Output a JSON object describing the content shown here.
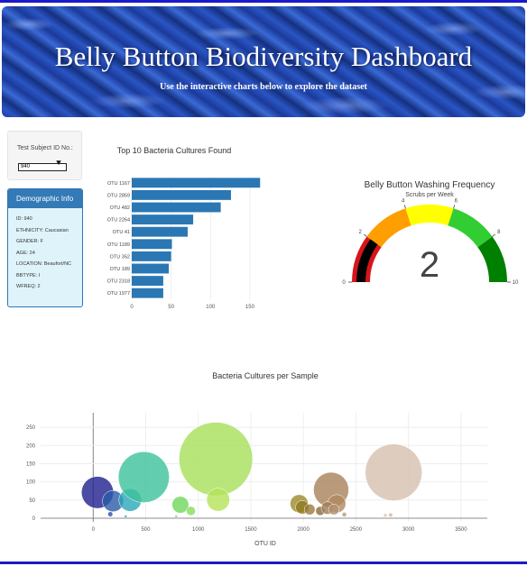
{
  "header": {
    "title": "Belly Button Biodiversity Dashboard",
    "subtitle": "Use the interactive charts below to explore the dataset"
  },
  "selector": {
    "label": "Test Subject ID No.:",
    "value": "940"
  },
  "demographics": {
    "title": "Demographic Info",
    "entries": [
      "ID: 940",
      "ETHNICITY: Caucasian",
      "GENDER: F",
      "AGE: 24",
      "LOCATION: Beaufort/NC",
      "BBTYPE: I",
      "WFREQ: 2"
    ]
  },
  "chart_data": [
    {
      "type": "bar",
      "orientation": "horizontal",
      "title": "Top 10 Bacteria Cultures Found",
      "categories": [
        "OTU 1167",
        "OTU 2859",
        "OTU 482",
        "OTU 2264",
        "OTU 41",
        "OTU 1189",
        "OTU 352",
        "OTU 189",
        "OTU 2318",
        "OTU 1977"
      ],
      "values": [
        163,
        126,
        113,
        78,
        71,
        51,
        50,
        47,
        40,
        40
      ],
      "xlim": [
        0,
        165
      ],
      "xticks": [
        0,
        50,
        100,
        150
      ],
      "color": "#2a77b4"
    },
    {
      "type": "gauge",
      "title": "Belly Button Washing Frequency",
      "subtitle": "Scrubs per Week",
      "value": 2,
      "range": [
        0,
        10
      ],
      "ticks": [
        0,
        2,
        4,
        6,
        8,
        10
      ],
      "bands": [
        {
          "from": 0,
          "to": 2,
          "color": "#d8141b"
        },
        {
          "from": 2,
          "to": 4,
          "color": "#ff9e00"
        },
        {
          "from": 4,
          "to": 6,
          "color": "#ffff00"
        },
        {
          "from": 6,
          "to": 8,
          "color": "#32cd32"
        },
        {
          "from": 8,
          "to": 10,
          "color": "#008000"
        }
      ],
      "bar_color": "#000000"
    },
    {
      "type": "scatter",
      "subtype": "bubble",
      "title": "Bacteria Cultures per Sample",
      "xlabel": "OTU ID",
      "ylabel": "",
      "xlim": [
        -500,
        3750
      ],
      "ylim": [
        -10,
        290
      ],
      "xticks": [
        0,
        500,
        1000,
        1500,
        2000,
        2500,
        3000,
        3500
      ],
      "yticks": [
        0,
        50,
        100,
        150,
        200,
        250
      ],
      "points": [
        {
          "x": 41,
          "y": 71,
          "color": "#1f1f8f"
        },
        {
          "x": 189,
          "y": 47,
          "color": "#2a5aa8"
        },
        {
          "x": 352,
          "y": 50,
          "color": "#2aa6b8"
        },
        {
          "x": 482,
          "y": 113,
          "color": "#3cc29b"
        },
        {
          "x": 163,
          "y": 11,
          "color": "#2b4fa5"
        },
        {
          "x": 310,
          "y": 5,
          "color": "#2ba0b5"
        },
        {
          "x": 830,
          "y": 37,
          "color": "#71d65c"
        },
        {
          "x": 930,
          "y": 20,
          "color": "#86dc5a"
        },
        {
          "x": 790,
          "y": 5,
          "color": "#7ad75b"
        },
        {
          "x": 1167,
          "y": 163,
          "color": "#a6e05a"
        },
        {
          "x": 1189,
          "y": 51,
          "color": "#b4e35a"
        },
        {
          "x": 1960,
          "y": 40,
          "color": "#9c8a2c"
        },
        {
          "x": 1990,
          "y": 30,
          "color": "#8f7a1e"
        },
        {
          "x": 2060,
          "y": 24,
          "color": "#9a7a3a"
        },
        {
          "x": 2160,
          "y": 20,
          "color": "#8a6a3a"
        },
        {
          "x": 2264,
          "y": 78,
          "color": "#a8825a"
        },
        {
          "x": 2318,
          "y": 40,
          "color": "#b08860"
        },
        {
          "x": 2230,
          "y": 28,
          "color": "#9c7a56"
        },
        {
          "x": 2290,
          "y": 24,
          "color": "#b39070"
        },
        {
          "x": 2390,
          "y": 10,
          "color": "#b8987a"
        },
        {
          "x": 2859,
          "y": 126,
          "color": "#d6c0ae"
        },
        {
          "x": 2780,
          "y": 8,
          "color": "#d8c6b6"
        },
        {
          "x": 2830,
          "y": 9,
          "color": "#d2b8a4"
        }
      ]
    }
  ]
}
